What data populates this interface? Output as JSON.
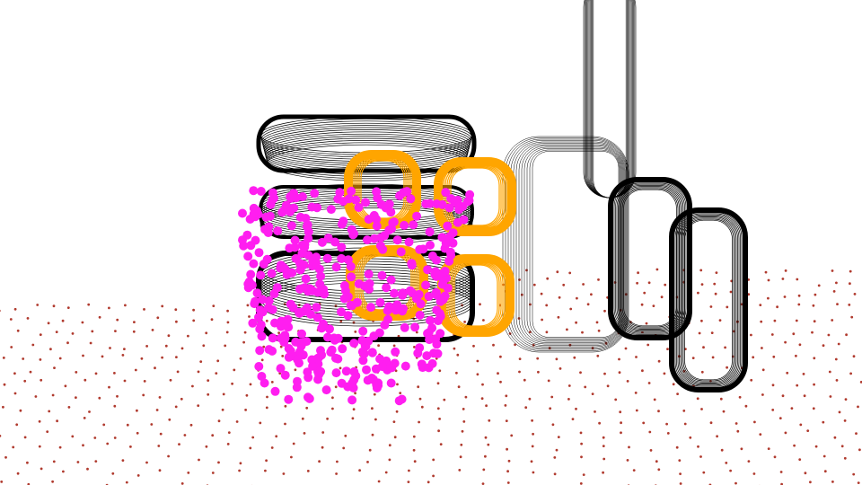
{
  "scene": {
    "background_color": "#ffffff",
    "layers": [
      {
        "name": "ground-plane-points",
        "color": "#b03a2e"
      },
      {
        "name": "gripper-fingers-point-cloud",
        "color": "#000000"
      },
      {
        "name": "cylinder-object-point-cloud",
        "color": "#000000"
      },
      {
        "name": "target-grasp-points",
        "color": "#ffa500"
      },
      {
        "name": "object-sampled-points",
        "color": "#ff1ef0"
      }
    ]
  }
}
